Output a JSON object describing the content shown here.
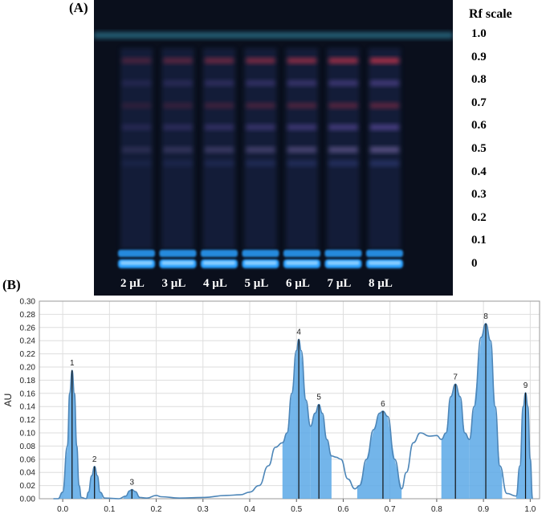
{
  "panel_a_label": "(A)",
  "panel_b_label": "(B)",
  "plate": {
    "rf_title": "Rf scale",
    "rf_ticks": [
      {
        "label": "1.0",
        "rf": 1.0
      },
      {
        "label": "0.9",
        "rf": 0.9
      },
      {
        "label": "0.8",
        "rf": 0.8
      },
      {
        "label": "0.7",
        "rf": 0.7
      },
      {
        "label": "0.6",
        "rf": 0.6
      },
      {
        "label": "0.5",
        "rf": 0.5
      },
      {
        "label": "0.4",
        "rf": 0.4
      },
      {
        "label": "0.3",
        "rf": 0.3
      },
      {
        "label": "0.2",
        "rf": 0.2
      },
      {
        "label": "0.1",
        "rf": 0.1
      },
      {
        "label": "0",
        "rf": 0.0
      }
    ],
    "lanes": [
      "2 µL",
      "3 µL",
      "4 µL",
      "5 µL",
      "6 µL",
      "7 µL",
      "8 µL"
    ],
    "colors": {
      "background": "#0a0f1c",
      "origin_band": "#2aa0ff",
      "solvent_front": "#2f7f9a",
      "red_band": "#b0304a",
      "violet_band": "#5a4a9a"
    }
  },
  "chart_data": {
    "type": "area",
    "xlabel": "",
    "ylabel": "AU",
    "xlim": [
      -0.05,
      1.02
    ],
    "ylim": [
      0,
      0.3
    ],
    "x_ticks": [
      "0.0",
      "0.1",
      "0.2",
      "0.3",
      "0.4",
      "0.5",
      "0.6",
      "0.7",
      "0.8",
      "0.9",
      "1.0"
    ],
    "y_ticks": [
      "0.00",
      "0.02",
      "0.04",
      "0.06",
      "0.08",
      "0.10",
      "0.12",
      "0.14",
      "0.16",
      "0.18",
      "0.20",
      "0.22",
      "0.24",
      "0.26",
      "0.28",
      "0.30"
    ],
    "grid": true,
    "line_color": "#4d86b8",
    "fill_color": "#5aa8e6",
    "peaks": [
      {
        "label": "1",
        "rf": 0.02,
        "au": 0.195,
        "from": -0.01,
        "to": 0.04
      },
      {
        "label": "2",
        "rf": 0.068,
        "au": 0.049,
        "from": 0.05,
        "to": 0.085
      },
      {
        "label": "3",
        "rf": 0.148,
        "au": 0.014,
        "from": 0.13,
        "to": 0.165
      },
      {
        "label": "4",
        "rf": 0.505,
        "au": 0.242,
        "from": 0.47,
        "to": 0.53
      },
      {
        "label": "5",
        "rf": 0.548,
        "au": 0.143,
        "from": 0.53,
        "to": 0.575
      },
      {
        "label": "6",
        "rf": 0.685,
        "au": 0.133,
        "from": 0.63,
        "to": 0.725
      },
      {
        "label": "7",
        "rf": 0.84,
        "au": 0.174,
        "from": 0.81,
        "to": 0.87
      },
      {
        "label": "8",
        "rf": 0.905,
        "au": 0.266,
        "from": 0.87,
        "to": 0.94
      },
      {
        "label": "9",
        "rf": 0.99,
        "au": 0.161,
        "from": 0.97,
        "to": 1.005
      }
    ],
    "trace": [
      [
        -0.02,
        0.0
      ],
      [
        -0.01,
        0.0
      ],
      [
        0.0,
        0.01
      ],
      [
        0.01,
        0.08
      ],
      [
        0.015,
        0.16
      ],
      [
        0.02,
        0.195
      ],
      [
        0.025,
        0.16
      ],
      [
        0.03,
        0.08
      ],
      [
        0.035,
        0.02
      ],
      [
        0.04,
        0.002
      ],
      [
        0.05,
        0.0
      ],
      [
        0.055,
        0.01
      ],
      [
        0.062,
        0.035
      ],
      [
        0.068,
        0.049
      ],
      [
        0.074,
        0.035
      ],
      [
        0.08,
        0.01
      ],
      [
        0.09,
        0.001
      ],
      [
        0.12,
        0.0
      ],
      [
        0.135,
        0.004
      ],
      [
        0.143,
        0.012
      ],
      [
        0.148,
        0.014
      ],
      [
        0.155,
        0.011
      ],
      [
        0.165,
        0.002
      ],
      [
        0.18,
        0.001
      ],
      [
        0.2,
        0.005
      ],
      [
        0.21,
        0.003
      ],
      [
        0.25,
        0.001
      ],
      [
        0.3,
        0.002
      ],
      [
        0.35,
        0.005
      ],
      [
        0.38,
        0.006
      ],
      [
        0.4,
        0.01
      ],
      [
        0.42,
        0.02
      ],
      [
        0.44,
        0.05
      ],
      [
        0.455,
        0.078
      ],
      [
        0.47,
        0.085
      ],
      [
        0.48,
        0.1
      ],
      [
        0.49,
        0.16
      ],
      [
        0.5,
        0.225
      ],
      [
        0.505,
        0.242
      ],
      [
        0.51,
        0.225
      ],
      [
        0.52,
        0.15
      ],
      [
        0.53,
        0.11
      ],
      [
        0.54,
        0.13
      ],
      [
        0.548,
        0.143
      ],
      [
        0.555,
        0.13
      ],
      [
        0.565,
        0.09
      ],
      [
        0.575,
        0.065
      ],
      [
        0.585,
        0.063
      ],
      [
        0.595,
        0.06
      ],
      [
        0.61,
        0.03
      ],
      [
        0.625,
        0.015
      ],
      [
        0.635,
        0.02
      ],
      [
        0.65,
        0.06
      ],
      [
        0.665,
        0.105
      ],
      [
        0.678,
        0.13
      ],
      [
        0.685,
        0.133
      ],
      [
        0.695,
        0.125
      ],
      [
        0.71,
        0.06
      ],
      [
        0.725,
        0.015
      ],
      [
        0.735,
        0.04
      ],
      [
        0.75,
        0.085
      ],
      [
        0.765,
        0.1
      ],
      [
        0.785,
        0.095
      ],
      [
        0.8,
        0.096
      ],
      [
        0.81,
        0.09
      ],
      [
        0.82,
        0.1
      ],
      [
        0.83,
        0.155
      ],
      [
        0.84,
        0.174
      ],
      [
        0.85,
        0.155
      ],
      [
        0.86,
        0.1
      ],
      [
        0.87,
        0.09
      ],
      [
        0.88,
        0.14
      ],
      [
        0.895,
        0.245
      ],
      [
        0.905,
        0.266
      ],
      [
        0.915,
        0.24
      ],
      [
        0.925,
        0.14
      ],
      [
        0.935,
        0.05
      ],
      [
        0.95,
        0.008
      ],
      [
        0.97,
        0.004
      ],
      [
        0.978,
        0.05
      ],
      [
        0.985,
        0.14
      ],
      [
        0.99,
        0.161
      ],
      [
        0.995,
        0.14
      ],
      [
        1.0,
        0.06
      ],
      [
        1.005,
        0.0
      ]
    ]
  }
}
